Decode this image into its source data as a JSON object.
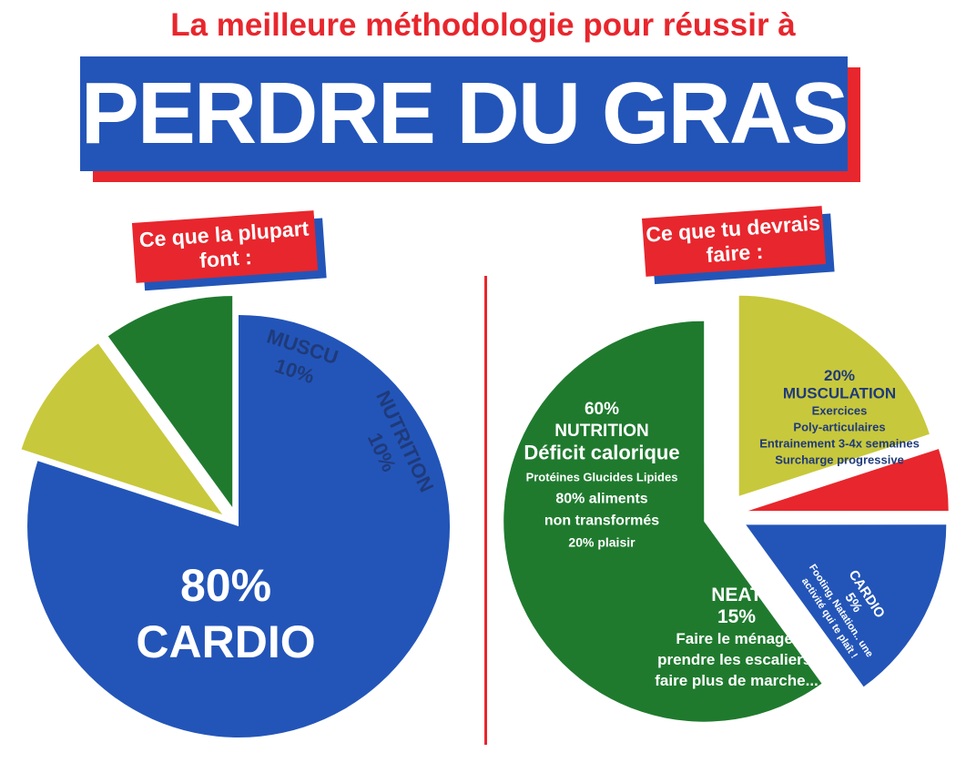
{
  "header": {
    "subtitle": "La meilleure méthodologie pour réussir à",
    "title": "PERDRE DU GRAS"
  },
  "tags": {
    "left": "Ce que la plupart font :",
    "right": "Ce que tu devrais faire :"
  },
  "colors": {
    "red": "#e8262d",
    "blue": "#2355b8",
    "green": "#1f7a2e",
    "yellow": "#c8c83c",
    "dark_text": "#1f3a7a"
  },
  "chart_data": [
    {
      "type": "pie",
      "title": "Ce que la plupart font :",
      "slices": [
        {
          "label": "CARDIO",
          "value": 80,
          "color": "#2355b8",
          "lines": [
            "80%",
            "CARDIO"
          ]
        },
        {
          "label": "MUSCU",
          "value": 10,
          "color": "#c8c83c",
          "lines": [
            "MUSCU",
            "10%"
          ]
        },
        {
          "label": "NUTRITION",
          "value": 10,
          "color": "#1f7a2e",
          "lines": [
            "NUTRITION",
            "10%"
          ]
        }
      ]
    },
    {
      "type": "pie",
      "title": "Ce que tu devrais faire :",
      "slices": [
        {
          "label": "MUSCULATION",
          "value": 20,
          "color": "#c8c83c",
          "lines": [
            "20%",
            "MUSCULATION",
            "Exercices",
            "Poly-articulaires",
            "Entrainement 3-4x semaines",
            "Surcharge progressive"
          ]
        },
        {
          "label": "CARDIO",
          "value": 5,
          "color": "#e8262d",
          "lines": [
            "CARDIO",
            "5%",
            "Footing, Natation.. une",
            "activité qui te plaît !"
          ]
        },
        {
          "label": "NEAT",
          "value": 15,
          "color": "#2355b8",
          "lines": [
            "NEAT",
            "15%",
            "Faire le ménage,",
            "prendre les escaliers,",
            "faire plus de marche..."
          ]
        },
        {
          "label": "NUTRITION",
          "value": 60,
          "color": "#1f7a2e",
          "lines": [
            "60%",
            "NUTRITION",
            "Déficit calorique",
            "Protéines Glucides Lipides",
            "80% aliments",
            "non transformés",
            "20% plaisir"
          ]
        }
      ]
    }
  ]
}
